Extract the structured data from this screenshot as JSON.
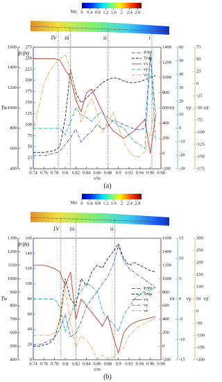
{
  "chart_data": [
    {
      "type": "line",
      "caption": "(a)",
      "xlabel": "x/m",
      "colorbar": {
        "label": "Ma:",
        "lim": [
          0,
          3
        ],
        "ticks": [
          0,
          0.4,
          0.8,
          1.2,
          1.6,
          2,
          2.4,
          2.8
        ]
      },
      "x": [
        0.74,
        0.75,
        0.76,
        0.77,
        0.78,
        0.79,
        0.8,
        0.81,
        0.82,
        0.83,
        0.84,
        0.85,
        0.86,
        0.87,
        0.88,
        0.89,
        0.9,
        0.91,
        0.92,
        0.93,
        0.94,
        0.95,
        0.96,
        0.97
      ],
      "xlim": [
        0.74,
        0.98
      ],
      "xticks": [
        0.74,
        0.76,
        0.78,
        0.8,
        0.82,
        0.84,
        0.86,
        0.88,
        0.9,
        0.92,
        0.94,
        0.96,
        0.98
      ],
      "markers": [
        {
          "label": "IV",
          "x": 0.787
        },
        {
          "label": "iii",
          "x": 0.81
        },
        {
          "label": "ii",
          "x": 0.88
        },
        {
          "label": "i",
          "x": 0.963
        }
      ],
      "legend": "upper right",
      "y_axes": [
        {
          "label": "Tw",
          "color": "#000000",
          "lim": [
            400,
            1600
          ],
          "ticks": [
            400,
            600,
            800,
            1000,
            1200,
            1400,
            1600
          ]
        },
        {
          "label": "P/P0",
          "color": "#2040c0",
          "lim": [
            0,
            275
          ],
          "ticks": [
            0,
            25,
            50,
            75,
            100,
            125,
            150,
            175,
            200,
            225,
            250,
            275
          ]
        },
        {
          "label": "vx",
          "color": "#c0392b",
          "lim": [
            -200,
            1400
          ],
          "ticks": [
            -200,
            0,
            200,
            400,
            600,
            800,
            1000,
            1200,
            1400
          ]
        },
        {
          "label": "vy",
          "color": "#18a0a0",
          "lim": [
            -30,
            60
          ],
          "ticks": [
            -30,
            -20,
            -10,
            0,
            10,
            20,
            30,
            40,
            50,
            60
          ]
        },
        {
          "label": "vz",
          "color": "#d09030",
          "lim": [
            -175,
            75
          ],
          "ticks": [
            -175,
            -150,
            -125,
            -100,
            -75,
            -50,
            -25,
            0,
            25,
            50,
            75
          ]
        }
      ],
      "series": [
        {
          "name": "P/P0",
          "axis": 1,
          "color": "#3050d0",
          "style": "dashdot",
          "values": [
            30,
            30,
            30,
            32,
            35,
            40,
            55,
            70,
            90,
            60,
            75,
            85,
            100,
            90,
            95,
            110,
            105,
            100,
            95,
            90,
            88,
            92,
            260,
            120
          ]
        },
        {
          "name": "Tmp",
          "axis": 0,
          "color": "#222222",
          "style": "dashed",
          "values": [
            560,
            560,
            560,
            570,
            580,
            620,
            900,
            1380,
            1150,
            1050,
            1100,
            1150,
            1200,
            1250,
            1280,
            1300,
            1290,
            1270,
            1250,
            1250,
            1260,
            1280,
            1300,
            1320
          ]
        },
        {
          "name": "vx",
          "axis": 2,
          "color": "#c0392b",
          "style": "solid",
          "values": [
            1250,
            1250,
            1250,
            1250,
            1250,
            1230,
            1100,
            1000,
            700,
            550,
            800,
            850,
            700,
            550,
            400,
            300,
            250,
            200,
            250,
            300,
            380,
            450,
            0,
            500
          ]
        },
        {
          "name": "vy",
          "axis": 3,
          "color": "#18a0a0",
          "style": "dashdot",
          "values": [
            0,
            0,
            0,
            0,
            0,
            0,
            -5,
            5,
            15,
            10,
            8,
            5,
            10,
            12,
            8,
            5,
            2,
            0,
            -5,
            -10,
            -12,
            -15,
            55,
            -10
          ]
        },
        {
          "name": "vz",
          "axis": 4,
          "color": "#e0a040",
          "style": "dashdotdot",
          "values": [
            -100,
            -50,
            0,
            25,
            40,
            50,
            60,
            30,
            -20,
            -80,
            -50,
            -30,
            -60,
            -100,
            -80,
            -60,
            -90,
            -120,
            -140,
            -150,
            -150,
            -140,
            -100,
            -50
          ]
        }
      ]
    },
    {
      "type": "line",
      "caption": "(b)",
      "xlabel": "x/m",
      "colorbar": {
        "label": "Ma:",
        "lim": [
          0,
          3
        ],
        "ticks": [
          0,
          0.4,
          0.8,
          1.2,
          1.6,
          2,
          2.4,
          2.8
        ]
      },
      "x": [
        0.74,
        0.75,
        0.76,
        0.77,
        0.78,
        0.79,
        0.8,
        0.81,
        0.82,
        0.83,
        0.84,
        0.85,
        0.86,
        0.87,
        0.88,
        0.89,
        0.9,
        0.91,
        0.92,
        0.93,
        0.94,
        0.95,
        0.96,
        0.97
      ],
      "xlim": [
        0.74,
        0.98
      ],
      "xticks": [
        0.74,
        0.76,
        0.78,
        0.8,
        0.82,
        0.84,
        0.86,
        0.88,
        0.9,
        0.92,
        0.94,
        0.96,
        0.98
      ],
      "markers": [
        {
          "label": "IV",
          "x": 0.792
        },
        {
          "label": "iii",
          "x": 0.82
        },
        {
          "label": "ii",
          "x": 0.893
        }
      ],
      "legend": "center right",
      "y_axes": [
        {
          "label": "Tw",
          "color": "#000000",
          "lim": [
            400,
            1300
          ],
          "ticks": [
            400,
            500,
            600,
            700,
            800,
            900,
            1000,
            1100,
            1200,
            1300
          ]
        },
        {
          "label": "P/P0",
          "color": "#2040c0",
          "lim": [
            0,
            160
          ],
          "ticks": [
            0,
            20,
            40,
            60,
            80,
            100,
            120,
            140,
            160
          ]
        },
        {
          "label": "vx",
          "color": "#c0392b",
          "lim": [
            -200,
            1600
          ],
          "ticks": [
            -200,
            0,
            200,
            400,
            600,
            800,
            1000,
            1200,
            1400,
            1600
          ]
        },
        {
          "label": "vy",
          "color": "#18a0a0",
          "lim": [
            -15,
            15
          ],
          "ticks": [
            -15,
            -10,
            -5,
            0,
            5,
            10,
            15
          ]
        },
        {
          "label": "vz",
          "color": "#d09030",
          "lim": [
            -200,
            300
          ],
          "ticks": [
            -200,
            -150,
            -100,
            -50,
            0,
            50,
            100,
            150,
            200,
            250,
            300
          ]
        }
      ],
      "series": [
        {
          "name": "P/P0",
          "axis": 1,
          "color": "#3050d0",
          "style": "dashdot",
          "values": [
            20,
            20,
            22,
            25,
            30,
            40,
            60,
            30,
            35,
            50,
            70,
            80,
            90,
            100,
            110,
            125,
            150,
            130,
            120,
            115,
            110,
            105,
            100,
            95
          ]
        },
        {
          "name": "Tmp",
          "axis": 0,
          "color": "#222222",
          "style": "dashed",
          "values": [
            500,
            500,
            510,
            520,
            560,
            700,
            1000,
            850,
            800,
            1000,
            950,
            1050,
            1100,
            1080,
            1150,
            1200,
            1260,
            1150,
            1100,
            1120,
            1100,
            1080,
            1060,
            1050
          ]
        },
        {
          "name": "vx",
          "axis": 2,
          "color": "#c0392b",
          "style": "solid",
          "values": [
            1200,
            1200,
            1200,
            1180,
            1150,
            1100,
            900,
            1100,
            400,
            700,
            600,
            500,
            400,
            300,
            450,
            150,
            -100,
            200,
            300,
            350,
            380,
            400,
            420,
            440
          ]
        },
        {
          "name": "vy",
          "axis": 3,
          "color": "#18a0a0",
          "style": "dashdot",
          "values": [
            0,
            0,
            0,
            0,
            0,
            -2,
            -8,
            -4,
            0,
            2,
            4,
            3,
            2,
            -3,
            -5,
            -6,
            -8,
            -4,
            -2,
            0,
            1,
            2,
            2,
            3
          ]
        },
        {
          "name": "vz",
          "axis": 4,
          "color": "#e0a040",
          "style": "dashdotdot",
          "values": [
            -100,
            -100,
            -100,
            -100,
            -90,
            -50,
            100,
            -50,
            -150,
            -100,
            -120,
            -150,
            -200,
            -180,
            -200,
            -190,
            -170,
            -150,
            -100,
            -80,
            -60,
            -50,
            -40,
            -30
          ]
        }
      ]
    }
  ]
}
